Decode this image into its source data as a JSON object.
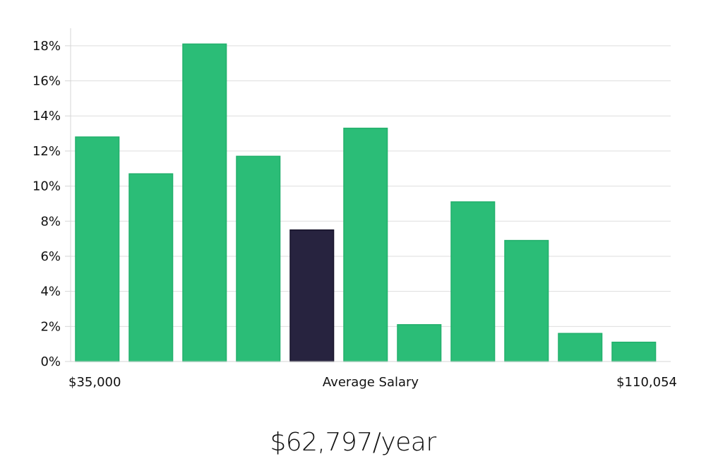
{
  "headline": "$62,797/year",
  "colors": {
    "bar": "#2bbd77",
    "highlight": "#27233f",
    "grid": "#dedede",
    "axis": "#d6d6d6"
  },
  "chart_data": {
    "type": "bar",
    "ylim": [
      0,
      19
    ],
    "yticks": [
      0,
      2,
      4,
      6,
      8,
      10,
      12,
      14,
      16,
      18
    ],
    "ytick_labels": [
      "0%",
      "2%",
      "4%",
      "6%",
      "8%",
      "10%",
      "12%",
      "14%",
      "16%",
      "18%"
    ],
    "grid": true,
    "values": [
      12.8,
      10.7,
      18.1,
      11.7,
      7.5,
      13.3,
      2.1,
      9.1,
      6.9,
      1.6,
      1.1
    ],
    "highlight_index": 4,
    "xlabel_left": "$35,000",
    "xlabel_center": "Average Salary",
    "xlabel_right": "$110,054"
  }
}
